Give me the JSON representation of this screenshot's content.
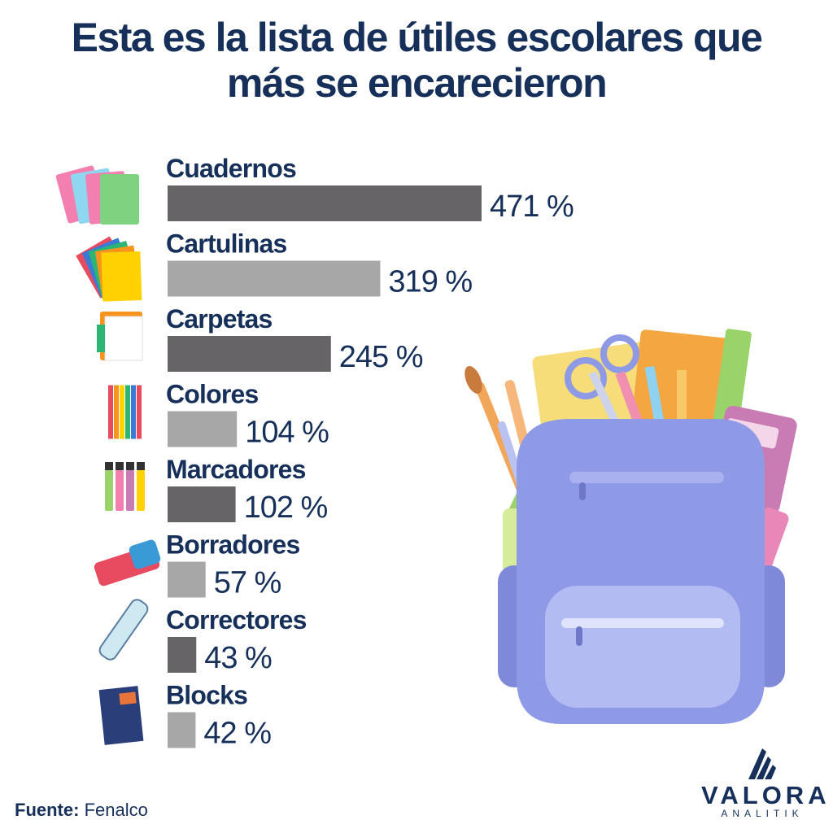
{
  "title": {
    "line1": "Esta es la lista de útiles escolares que",
    "line2": "más se encarecieron"
  },
  "source": {
    "label": "Fuente:",
    "value": "Fenalco"
  },
  "logo": {
    "name": "VALORA",
    "sub": "ANALITIK"
  },
  "colors": {
    "title": "#16305a",
    "bar_dark": "#676467",
    "bar_light": "#a7a7a7",
    "backpack": "#8f9ae6"
  },
  "chart_data": {
    "type": "bar",
    "orientation": "horizontal",
    "title": "Esta es la lista de útiles escolares que más se encarecieron",
    "categories": [
      "Cuadernos",
      "Cartulinas",
      "Carpetas",
      "Colores",
      "Marcadores",
      "Borradores",
      "Correctores",
      "Blocks"
    ],
    "values": [
      471,
      319,
      245,
      104,
      102,
      57,
      43,
      42
    ],
    "value_labels": [
      "471 %",
      "319 %",
      "245 %",
      "104 %",
      "102 %",
      "57 %",
      "43 %",
      "42 %"
    ],
    "icons": [
      "notebooks-icon",
      "cardboard-sheets-icon",
      "folders-icon",
      "colored-pencils-icon",
      "markers-icon",
      "eraser-icon",
      "corrector-pen-icon",
      "drawing-block-icon"
    ],
    "unit": "%",
    "xlabel": "",
    "ylabel": "",
    "xlim": [
      0,
      471
    ],
    "grid": false,
    "legend": "none"
  }
}
